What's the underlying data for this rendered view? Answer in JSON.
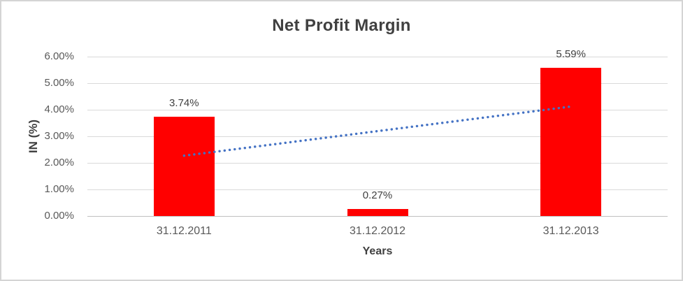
{
  "window": {
    "background": "#ffffff",
    "frame_border_color": "#d4d4d4"
  },
  "chart_data": {
    "type": "bar",
    "title": "Net Profit Margin",
    "xlabel": "Years",
    "ylabel": "IN (%)",
    "categories": [
      "31.12.2011",
      "31.12.2012",
      "31.12.2013"
    ],
    "values": [
      3.74,
      0.27,
      5.59
    ],
    "data_labels": [
      "3.74%",
      "0.27%",
      "5.59%"
    ],
    "ylim": [
      0,
      6
    ],
    "y_ticks": [
      {
        "value": 0,
        "label": "0.00%"
      },
      {
        "value": 1,
        "label": "1.00%"
      },
      {
        "value": 2,
        "label": "2.00%"
      },
      {
        "value": 3,
        "label": "3.00%"
      },
      {
        "value": 4,
        "label": "4.00%"
      },
      {
        "value": 5,
        "label": "5.00%"
      },
      {
        "value": 6,
        "label": "6.00%"
      }
    ],
    "grid": true,
    "legend": "none",
    "bar_color": "#ff0000",
    "trendline": {
      "type": "linear",
      "style": "dotted",
      "color": "#4472c4",
      "start_value": 2.27,
      "end_value": 4.12
    },
    "colors": {
      "grid": "#d9d9d9",
      "axis": "#bfbfbf",
      "tick_text": "#595959",
      "label_text": "#404040",
      "title_text": "#404040"
    }
  }
}
